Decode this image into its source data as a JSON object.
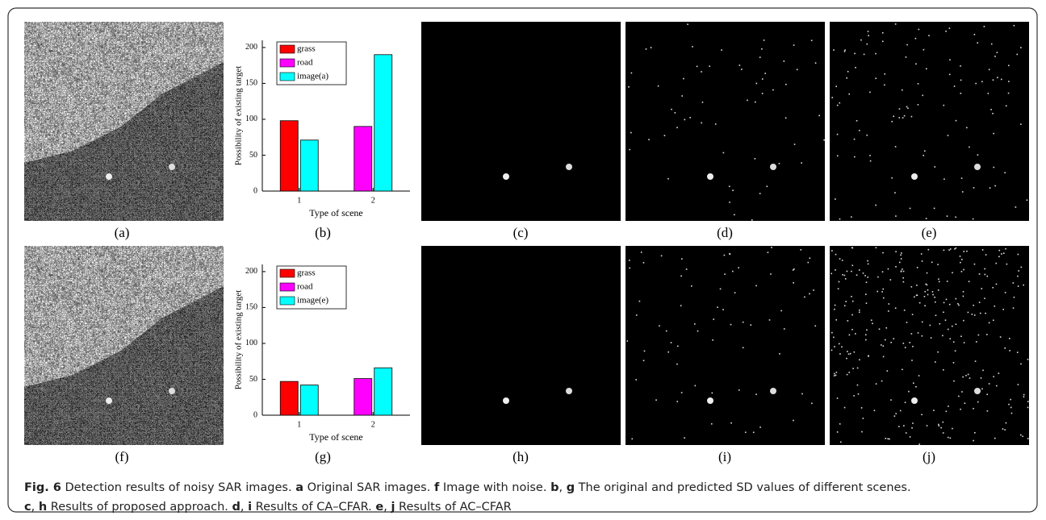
{
  "panel_labels": [
    "(a)",
    "(b)",
    "(c)",
    "(d)",
    "(e)",
    "(f)",
    "(g)",
    "(h)",
    "(i)",
    "(j)"
  ],
  "chart_data": [
    {
      "type": "bar",
      "categories": [
        "1",
        "2"
      ],
      "xlabel": "Type of scene",
      "ylabel": "Possibility of existing target",
      "ylim": [
        0,
        210
      ],
      "yticks": [
        0,
        50,
        100,
        150,
        200
      ],
      "series": [
        {
          "name": "grass",
          "color": "#ff0000",
          "values": [
            98,
            null
          ]
        },
        {
          "name": "road",
          "color": "#ff00ff",
          "values": [
            null,
            90
          ]
        },
        {
          "name": "image(a)",
          "color": "#00ffff",
          "values": [
            71,
            190
          ]
        }
      ]
    },
    {
      "type": "bar",
      "categories": [
        "1",
        "2"
      ],
      "xlabel": "Type of scene",
      "ylabel": "Possibility of existing target",
      "ylim": [
        0,
        210
      ],
      "yticks": [
        0,
        50,
        100,
        150,
        200
      ],
      "series": [
        {
          "name": "grass",
          "color": "#ff0000",
          "values": [
            47,
            null
          ]
        },
        {
          "name": "road",
          "color": "#ff00ff",
          "values": [
            null,
            51
          ]
        },
        {
          "name": "image(e)",
          "color": "#00ffff",
          "values": [
            42,
            66
          ]
        }
      ]
    }
  ],
  "caption": [
    [
      {
        "text": "Fig. 6",
        "bold": true
      },
      {
        "text": " Detection results of noisy SAR images. ",
        "bold": false
      },
      {
        "text": "a",
        "bold": true
      },
      {
        "text": " Original SAR images. ",
        "bold": false
      },
      {
        "text": "f",
        "bold": true
      },
      {
        "text": " Image with noise. ",
        "bold": false
      },
      {
        "text": "b",
        "bold": true
      },
      {
        "text": ", ",
        "bold": false
      },
      {
        "text": "g",
        "bold": true
      },
      {
        "text": " The original and predicted SD values of different scenes.",
        "bold": false
      }
    ],
    [
      {
        "text": "c",
        "bold": true
      },
      {
        "text": ", ",
        "bold": false
      },
      {
        "text": "h",
        "bold": true
      },
      {
        "text": " Results of proposed approach. ",
        "bold": false
      },
      {
        "text": "d",
        "bold": true
      },
      {
        "text": ", ",
        "bold": false
      },
      {
        "text": "i",
        "bold": true
      },
      {
        "text": " Results of CA–CFAR. ",
        "bold": false
      },
      {
        "text": "e",
        "bold": true
      },
      {
        "text": ", ",
        "bold": false
      },
      {
        "text": "j",
        "bold": true
      },
      {
        "text": " Results of AC–CFAR",
        "bold": false
      }
    ]
  ]
}
